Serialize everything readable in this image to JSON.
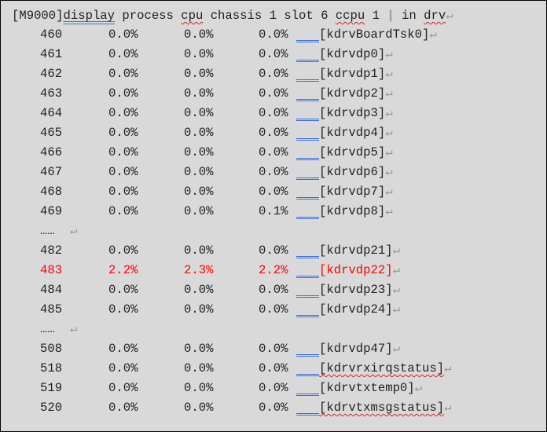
{
  "command": {
    "prompt": "[M9000]",
    "parts": [
      "display",
      " process ",
      "cpu",
      " chassis 1 slot 6 ",
      "ccpu",
      " 1 ",
      "|",
      " in ",
      "drv"
    ]
  },
  "return_mark": "↵",
  "ellipsis": "……",
  "rows": [
    {
      "pid": "460",
      "c1": "0.0%",
      "c2": "0.0%",
      "c3": "0.0%",
      "name": "[kdrvBoardTsk0]"
    },
    {
      "pid": "461",
      "c1": "0.0%",
      "c2": "0.0%",
      "c3": "0.0%",
      "name": "[kdrvdp0]"
    },
    {
      "pid": "462",
      "c1": "0.0%",
      "c2": "0.0%",
      "c3": "0.0%",
      "name": "[kdrvdp1]"
    },
    {
      "pid": "463",
      "c1": "0.0%",
      "c2": "0.0%",
      "c3": "0.0%",
      "name": "[kdrvdp2]"
    },
    {
      "pid": "464",
      "c1": "0.0%",
      "c2": "0.0%",
      "c3": "0.0%",
      "name": "[kdrvdp3]"
    },
    {
      "pid": "465",
      "c1": "0.0%",
      "c2": "0.0%",
      "c3": "0.0%",
      "name": "[kdrvdp4]"
    },
    {
      "pid": "466",
      "c1": "0.0%",
      "c2": "0.0%",
      "c3": "0.0%",
      "name": "[kdrvdp5]"
    },
    {
      "pid": "467",
      "c1": "0.0%",
      "c2": "0.0%",
      "c3": "0.0%",
      "name": "[kdrvdp6]"
    },
    {
      "pid": "468",
      "c1": "0.0%",
      "c2": "0.0%",
      "c3": "0.0%",
      "name": "[kdrvdp7]"
    },
    {
      "pid": "469",
      "c1": "0.0%",
      "c2": "0.0%",
      "c3": "0.1%",
      "name": "[kdrvdp8]"
    },
    {
      "ellipsis": true
    },
    {
      "pid": "482",
      "c1": "0.0%",
      "c2": "0.0%",
      "c3": "0.0%",
      "name": "[kdrvdp21]"
    },
    {
      "pid": "483",
      "c1": "2.2%",
      "c2": "2.3%",
      "c3": "2.2%",
      "name": "[kdrvdp22]",
      "highlight": true
    },
    {
      "pid": "484",
      "c1": "0.0%",
      "c2": "0.0%",
      "c3": "0.0%",
      "name": "[kdrvdp23]"
    },
    {
      "pid": "485",
      "c1": "0.0%",
      "c2": "0.0%",
      "c3": "0.0%",
      "name": "[kdrvdp24]"
    },
    {
      "ellipsis": true
    },
    {
      "pid": "508",
      "c1": "0.0%",
      "c2": "0.0%",
      "c3": "0.0%",
      "name": "[kdrvdp47]"
    },
    {
      "pid": "518",
      "c1": "0.0%",
      "c2": "0.0%",
      "c3": "0.0%",
      "name": "[kdrvrxirqstatus]",
      "spell": true
    },
    {
      "pid": "519",
      "c1": "0.0%",
      "c2": "0.0%",
      "c3": "0.0%",
      "name": "[kdrvtxtemp0]"
    },
    {
      "pid": "520",
      "c1": "0.0%",
      "c2": "0.0%",
      "c3": "0.0%",
      "name": "[kdrvtxmsgstatus]",
      "spell": true
    }
  ],
  "colors": {
    "background": "#d9d9d9",
    "highlight": "#ff0000",
    "spellcheck": "#e02020",
    "grammar": "#3a6fe0"
  }
}
